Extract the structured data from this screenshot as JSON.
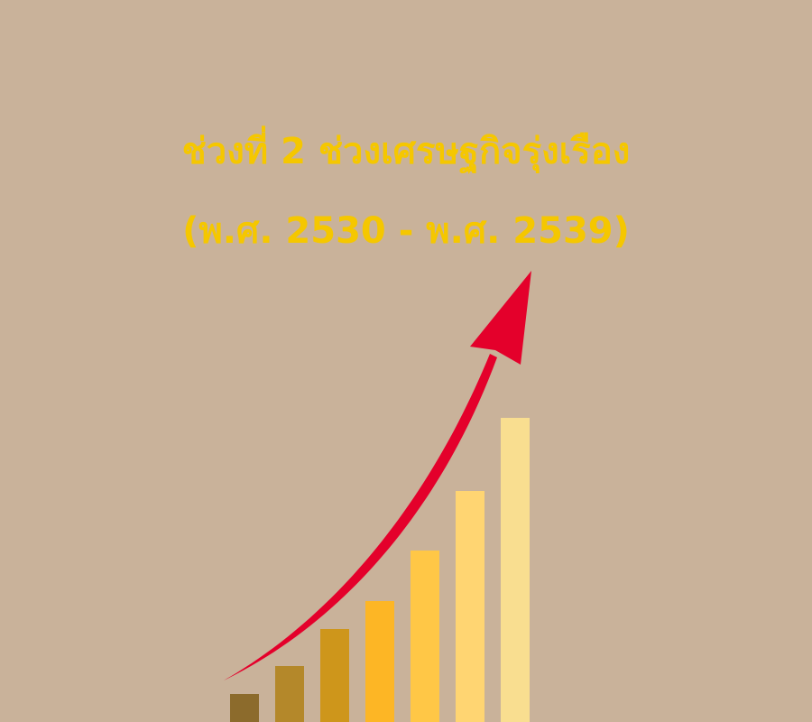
{
  "title": {
    "line1": "ช่วงที่ 2 ช่วงเศรษฐกิจรุ่งเรือง",
    "line2": "(พ.ศ. 2530 - พ.ศ. 2539)"
  },
  "chart_data": {
    "type": "bar",
    "values": [
      1,
      2,
      3.3,
      4.3,
      6.1,
      8.2,
      10.8
    ],
    "trend_arrow": true
  },
  "colors": {
    "background": "#C9B29A",
    "title": "#F5C700",
    "arrow": "#E4002B",
    "bars": [
      "#8C6B2C",
      "#B4882A",
      "#CE961B",
      "#FDB625",
      "#FFC746",
      "#FFD572",
      "#F9DE90"
    ]
  }
}
